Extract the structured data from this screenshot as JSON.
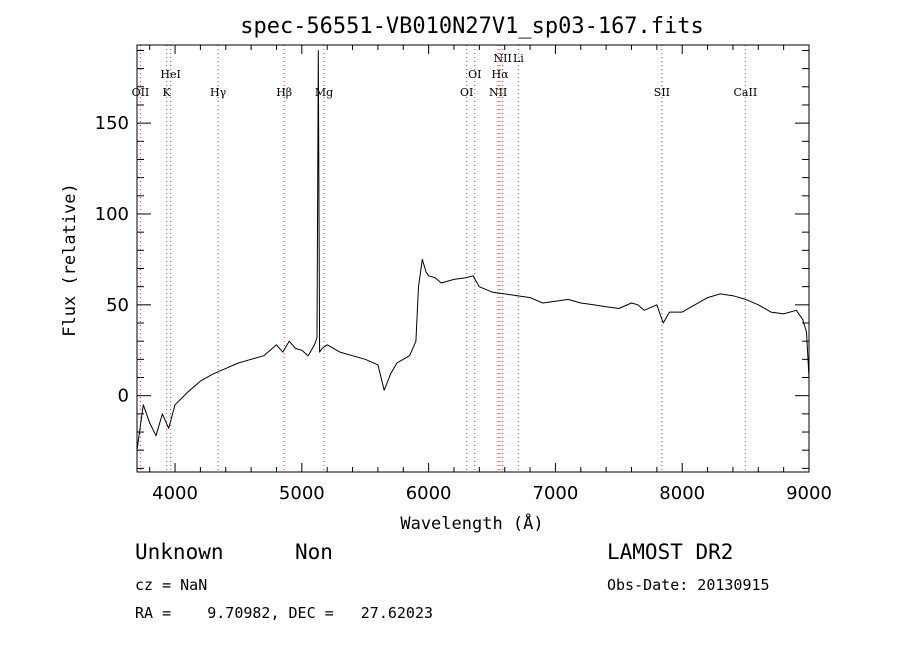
{
  "chart_data": {
    "type": "line",
    "title": "spec-56551-VB010N27V1_sp03-167.fits",
    "xlabel": "Wavelength (Å)",
    "ylabel": "Flux (relative)",
    "xlim": [
      3700,
      9000
    ],
    "ylim": [
      -42,
      193
    ],
    "x_ticks": [
      4000,
      5000,
      6000,
      7000,
      8000,
      9000
    ],
    "y_ticks": [
      0,
      50,
      100,
      150
    ],
    "x_minor_step": 200,
    "y_minor_step": 10,
    "grid": false,
    "lines": [
      {
        "label": "OII",
        "wavelength": 3727
      },
      {
        "label": "K",
        "wavelength": 3934
      },
      {
        "label": "HeI",
        "wavelength": 3965
      },
      {
        "label": "Hγ",
        "wavelength": 4340
      },
      {
        "label": "Hβ",
        "wavelength": 4861
      },
      {
        "label": "Mg",
        "wavelength": 5175
      },
      {
        "label": "OI",
        "wavelength": 6300
      },
      {
        "label": "OI",
        "wavelength": 6364
      },
      {
        "label": "NII",
        "wavelength": 6548
      },
      {
        "label": "Hα",
        "wavelength": 6563
      },
      {
        "label": "NII",
        "wavelength": 6584
      },
      {
        "label": "Li",
        "wavelength": 6708
      },
      {
        "label": "SII",
        "wavelength": 7840
      },
      {
        "label": "CaII",
        "wavelength": 8498
      }
    ],
    "series": [
      {
        "x": [
          3700,
          3750,
          3800,
          3850,
          3900,
          3950,
          4000,
          4100,
          4200,
          4300,
          4400,
          4500,
          4600,
          4700,
          4800,
          4850,
          4900,
          4950,
          5000,
          5050,
          5100,
          5120,
          5130,
          5140,
          5160,
          5200,
          5300,
          5400,
          5500,
          5600,
          5650,
          5700,
          5750,
          5800,
          5850,
          5900,
          5920,
          5950,
          5980,
          6000,
          6050,
          6100,
          6200,
          6300,
          6350,
          6400,
          6500,
          6600,
          6700,
          6800,
          6900,
          7000,
          7100,
          7200,
          7300,
          7400,
          7500,
          7600,
          7650,
          7700,
          7800,
          7850,
          7900,
          8000,
          8100,
          8200,
          8300,
          8400,
          8500,
          8600,
          8700,
          8800,
          8900,
          8950,
          8980,
          9000
        ],
        "y": [
          -30,
          -5,
          -15,
          -22,
          -10,
          -18,
          -5,
          2,
          8,
          12,
          15,
          18,
          20,
          22,
          28,
          24,
          30,
          26,
          25,
          22,
          28,
          32,
          190,
          24,
          26,
          28,
          24,
          22,
          20,
          17,
          3,
          12,
          18,
          20,
          22,
          30,
          60,
          75,
          68,
          66,
          65,
          62,
          64,
          65,
          66,
          60,
          57,
          56,
          55,
          54,
          51,
          52,
          53,
          51,
          50,
          49,
          48,
          51,
          50,
          47,
          50,
          40,
          46,
          46,
          50,
          54,
          56,
          55,
          53,
          50,
          46,
          45,
          47,
          42,
          35,
          10
        ]
      }
    ]
  },
  "info": {
    "object_class": "Unknown",
    "object_subclass": "Non",
    "survey": "LAMOST DR2",
    "cz": "cz = NaN",
    "obs_date": "Obs-Date: 20130915",
    "coords": "RA =    9.70982, DEC =   27.62023"
  }
}
